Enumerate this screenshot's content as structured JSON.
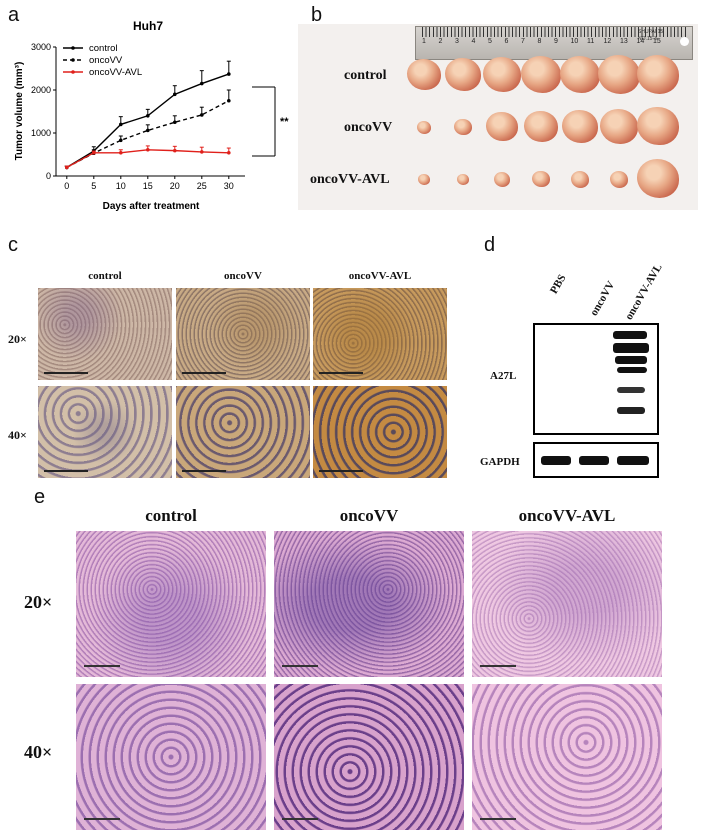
{
  "panels": {
    "a": "a",
    "b": "b",
    "c": "c",
    "d": "d",
    "e": "e"
  },
  "chart_data": {
    "type": "line",
    "title": "Huh7",
    "ylabel": "Tumor volume (mm³)",
    "xlabel": "Days after treatment",
    "x": [
      0,
      5,
      10,
      15,
      20,
      25,
      30
    ],
    "xticks": [
      "0",
      "5",
      "10",
      "15",
      "20",
      "25",
      "30"
    ],
    "yticks": [
      "0",
      "1000",
      "2000",
      "3000"
    ],
    "ylim": [
      0,
      3000
    ],
    "xlim": [
      -2,
      33
    ],
    "significance": "**",
    "series": [
      {
        "name": "control",
        "color": "#000000",
        "dash": "solid",
        "values": [
          200,
          580,
          1200,
          1400,
          1900,
          2150,
          2370
        ],
        "errors": [
          30,
          100,
          180,
          150,
          200,
          300,
          300
        ]
      },
      {
        "name": "oncoVV",
        "color": "#000000",
        "dash": "dashed",
        "values": [
          200,
          530,
          830,
          1060,
          1250,
          1420,
          1750
        ],
        "errors": [
          30,
          80,
          100,
          130,
          150,
          180,
          250
        ]
      },
      {
        "name": "oncoVV-AVL",
        "color": "#e0201b",
        "dash": "solid",
        "values": [
          200,
          540,
          540,
          610,
          590,
          560,
          540
        ],
        "errors": [
          30,
          40,
          70,
          90,
          100,
          110,
          110
        ]
      }
    ]
  },
  "panel_b": {
    "ruler_text": "SHUPAI 15 NO.15-3",
    "ruler_numbers": [
      "1",
      "2",
      "3",
      "4",
      "5",
      "6",
      "7",
      "8",
      "9",
      "10",
      "11",
      "12",
      "13",
      "14",
      "15"
    ],
    "rows": [
      {
        "label": "control",
        "sizes": [
          0.82,
          0.86,
          0.92,
          0.95,
          0.96,
          1.0,
          1.0
        ]
      },
      {
        "label": "oncoVV",
        "sizes": [
          0.35,
          0.42,
          0.75,
          0.82,
          0.85,
          0.9,
          0.98
        ]
      },
      {
        "label": "oncoVV-AVL",
        "sizes": [
          0.3,
          0.3,
          0.4,
          0.42,
          0.45,
          0.45,
          1.0
        ]
      }
    ]
  },
  "panel_c": {
    "columns": [
      "control",
      "oncoVV",
      "oncoVV-AVL"
    ],
    "rows": [
      "20×",
      "40×"
    ]
  },
  "panel_d": {
    "lanes": [
      "PBS",
      "oncoVV",
      "oncoVV-AVL"
    ],
    "markers": [
      "A27L",
      "GAPDH"
    ]
  },
  "panel_e": {
    "columns": [
      "control",
      "oncoVV",
      "oncoVV-AVL"
    ],
    "rows": [
      "20×",
      "40×"
    ]
  }
}
